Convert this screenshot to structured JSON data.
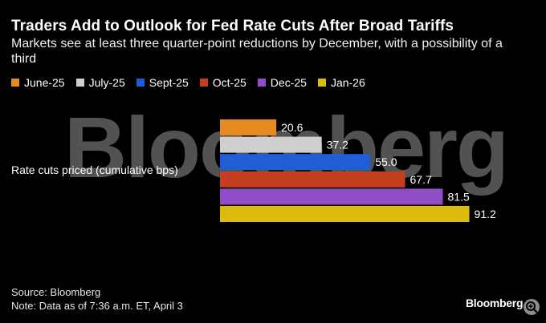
{
  "chart_data": {
    "type": "bar",
    "orientation": "horizontal",
    "title": "Traders Add to Outlook for Fed Rate Cuts After Broad Tariffs",
    "subtitle": "Markets see at least three quarter-point reductions by December, with a possibility of a third",
    "ylabel": "Rate cuts priced (cumulative bps)",
    "categories": [
      "June-25",
      "July-25",
      "Sept-25",
      "Oct-25",
      "Dec-25",
      "Jan-26"
    ],
    "values": [
      20.6,
      37.2,
      55.0,
      67.7,
      81.5,
      91.2
    ],
    "value_labels": [
      "20.6",
      "37.2",
      "55.0",
      "67.7",
      "81.5",
      "91.2"
    ],
    "colors": [
      "#e58a1f",
      "#cfcfcf",
      "#1e5fd6",
      "#c2401f",
      "#8f4ec7",
      "#dcbc0a"
    ],
    "xlim": [
      0,
      100
    ],
    "grid": false,
    "legend": "top"
  },
  "watermark": "Bloomberg",
  "footer": {
    "source": "Source: Bloomberg",
    "note": "Note: Data as of 7:36 a.m. ET, April 3"
  },
  "brand": "Bloomberg",
  "icons": {
    "zoom": "zoom-in-icon"
  }
}
